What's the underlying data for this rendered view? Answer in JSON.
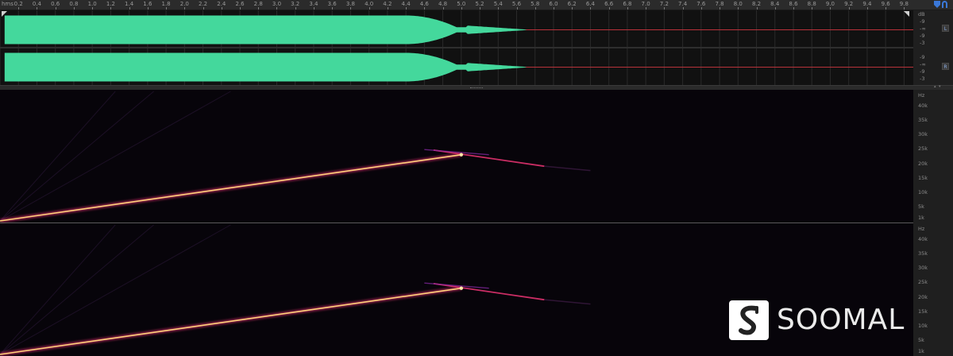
{
  "ruler": {
    "unit": "hms",
    "ticks": [
      "0.2",
      "0.4",
      "0.6",
      "0.8",
      "1.0",
      "1.2",
      "1.4",
      "1.6",
      "1.8",
      "2.0",
      "2.2",
      "2.4",
      "2.6",
      "2.8",
      "3.0",
      "3.2",
      "3.4",
      "3.6",
      "3.8",
      "4.0",
      "4.2",
      "4.4",
      "4.6",
      "4.8",
      "5.0",
      "5.2",
      "5.4",
      "5.6",
      "5.8",
      "6.0",
      "6.2",
      "6.4",
      "6.6",
      "6.8",
      "7.0",
      "7.2",
      "7.4",
      "7.6",
      "7.8",
      "8.0",
      "8.2",
      "8.4",
      "8.6",
      "8.8",
      "9.0",
      "9.2",
      "9.4",
      "9.6",
      "9.8"
    ],
    "range_seconds": [
      0,
      9.9
    ],
    "icons": [
      "playhead-marker-icon",
      "loop-icon"
    ]
  },
  "waveform": {
    "color": "#44d89c",
    "channels": [
      {
        "name": "L",
        "db_labels": [
          "dB",
          "-9",
          "-∞",
          "-9",
          "-3"
        ]
      },
      {
        "name": "R",
        "db_labels": [
          "-9",
          "-∞",
          "-9",
          "-3"
        ]
      }
    ]
  },
  "spectral": {
    "unit": "Hz",
    "channels": [
      {
        "labels": [
          "Hz",
          "40k",
          "35k",
          "30k",
          "25k",
          "20k",
          "15k",
          "10k",
          "5k",
          "1k"
        ]
      },
      {
        "labels": [
          "Hz",
          "40k",
          "35k",
          "30k",
          "25k",
          "20k",
          "15k",
          "10k",
          "5k",
          "1k"
        ]
      }
    ],
    "freq_range": [
      0,
      45000
    ],
    "sweep": {
      "start_time": 0.0,
      "peak_time": 5.0,
      "peak_freq_hz": 23000,
      "end_time": 5.9,
      "end_freq_hz": 19000
    },
    "highlight_color": "#ffd27a",
    "glow_color": "#e0326e"
  },
  "watermark": {
    "text": "SOOMAL",
    "icon": "soomal-logo-icon"
  }
}
